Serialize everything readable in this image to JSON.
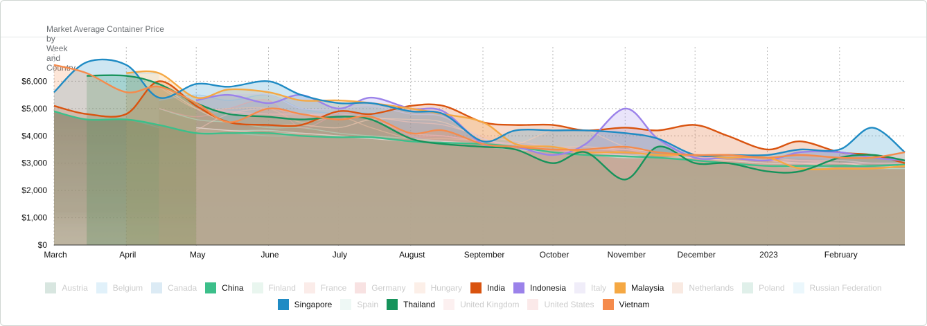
{
  "header": {
    "title_parts": [
      "Market Average Container Price",
      "by",
      "Week",
      "and",
      "Country"
    ]
  },
  "chart_data": {
    "type": "area",
    "title": "Market Average Container Price by Week and Country",
    "xlabel": "",
    "ylabel": "",
    "grid": true,
    "legend_position": "bottom",
    "ylim": [
      0,
      7000
    ],
    "y_ticks": [
      "$0",
      "$1,000",
      "$2,000",
      "$3,000",
      "$4,000",
      "$5,000",
      "$6,000"
    ],
    "x_ticks": [
      "March",
      "April",
      "May",
      "June",
      "July",
      "August",
      "September",
      "October",
      "November",
      "December",
      "2023",
      "February"
    ],
    "x": [
      "2022-03-01",
      "2022-03-15",
      "2022-04-01",
      "2022-04-15",
      "2022-05-01",
      "2022-05-15",
      "2022-06-01",
      "2022-06-15",
      "2022-07-01",
      "2022-07-15",
      "2022-08-01",
      "2022-08-15",
      "2022-09-01",
      "2022-09-15",
      "2022-10-01",
      "2022-10-15",
      "2022-11-01",
      "2022-11-15",
      "2022-12-01",
      "2022-12-15",
      "2023-01-01",
      "2023-01-15",
      "2023-02-01",
      "2023-02-15",
      "2023-03-01"
    ],
    "series": [
      {
        "name": "Austria",
        "color": "#7fb09a",
        "active": false,
        "values": [
          null,
          4600,
          4600,
          4300,
          null,
          null,
          null,
          null,
          null,
          null,
          null,
          null,
          null,
          null,
          null,
          null,
          null,
          null,
          null,
          null,
          null,
          null,
          null,
          null,
          null
        ]
      },
      {
        "name": "Belgium",
        "color": "#9fd3f0",
        "active": false,
        "values": [
          null,
          null,
          6300,
          6300,
          null,
          null,
          null,
          null,
          null,
          null,
          null,
          null,
          null,
          null,
          null,
          null,
          null,
          null,
          null,
          null,
          null,
          null,
          null,
          null,
          null
        ]
      },
      {
        "name": "Canada",
        "color": "#8fbfe0",
        "active": false,
        "values": [
          null,
          null,
          null,
          5300,
          5500,
          5300,
          5500,
          5000,
          4800,
          4800,
          4000,
          3800,
          3700,
          3700,
          3600,
          3500,
          3500,
          3400,
          3300,
          3200,
          3200,
          3200,
          3100,
          3000,
          3000
        ]
      },
      {
        "name": "China",
        "color": "#3cbf8a",
        "active": true,
        "values": [
          4900,
          4600,
          4600,
          4400,
          4100,
          4100,
          4100,
          4000,
          3950,
          3950,
          3800,
          3750,
          3700,
          3600,
          3400,
          3300,
          3250,
          3200,
          3100,
          3000,
          2900,
          2900,
          2900,
          2900,
          2950
        ]
      },
      {
        "name": "Finland",
        "color": "#b5e0c9",
        "active": false,
        "values": [
          null,
          null,
          null,
          5000,
          4600,
          4500,
          4300,
          4300,
          4100,
          4000,
          3900,
          3800,
          3700,
          3600,
          3500,
          3400,
          3300,
          3300,
          3200,
          3100,
          3000,
          3000,
          3000,
          2900,
          2900
        ]
      },
      {
        "name": "France",
        "color": "#f5c2b8",
        "active": false,
        "values": [
          null,
          null,
          null,
          null,
          4200,
          4800,
          5000,
          4800,
          4800,
          4700,
          4500,
          4400,
          4000,
          3800,
          3600,
          3600,
          3500,
          3400,
          3300,
          3300,
          3200,
          3100,
          3100,
          3000,
          3000
        ]
      },
      {
        "name": "Germany",
        "color": "#eaa3a3",
        "active": false,
        "values": [
          null,
          null,
          null,
          5000,
          4700,
          5000,
          5300,
          4300,
          4800,
          4700,
          4000,
          4000,
          3800,
          3700,
          3500,
          3400,
          3500,
          3300,
          3200,
          3200,
          3100,
          3000,
          3000,
          3000,
          3000
        ]
      },
      {
        "name": "Hungary",
        "color": "#f7cdb6",
        "active": false,
        "values": [
          null,
          null,
          null,
          5900,
          5000,
          4500,
          4400,
          4400,
          4300,
          4600,
          4600,
          4500,
          3900,
          3700,
          4200,
          4200,
          3600,
          3400,
          3300,
          3200,
          3100,
          3000,
          2900,
          2900,
          2900
        ]
      },
      {
        "name": "India",
        "color": "#d9530f",
        "active": true,
        "values": [
          5100,
          4800,
          4800,
          6000,
          5100,
          4500,
          4400,
          4400,
          4900,
          4800,
          5100,
          5100,
          4500,
          4400,
          4400,
          4200,
          4300,
          4200,
          4400,
          4000,
          3500,
          3800,
          3400,
          3300,
          3000
        ]
      },
      {
        "name": "Indonesia",
        "color": "#9b82ea",
        "active": true,
        "values": [
          null,
          null,
          null,
          null,
          5300,
          5500,
          5200,
          5500,
          5000,
          5400,
          5000,
          4900,
          3700,
          3600,
          3300,
          3700,
          5000,
          3900,
          3200,
          3200,
          3100,
          3400,
          3400,
          3200,
          3100
        ]
      },
      {
        "name": "Italy",
        "color": "#cfc6ee",
        "active": false,
        "values": [
          null,
          null,
          null,
          null,
          5400,
          5500,
          5500,
          5000,
          5000,
          5100,
          4800,
          4700,
          3900,
          3700,
          3500,
          3400,
          3300,
          3300,
          3200,
          3200,
          3100,
          3000,
          3000,
          3000,
          3000
        ]
      },
      {
        "name": "Malaysia",
        "color": "#f5a843",
        "active": true,
        "values": [
          null,
          null,
          6300,
          6300,
          5400,
          5700,
          5600,
          5300,
          5300,
          5200,
          5000,
          4800,
          4500,
          3700,
          3600,
          3400,
          3400,
          3300,
          3300,
          3200,
          3200,
          2800,
          2800,
          2800,
          2900
        ]
      },
      {
        "name": "Netherlands",
        "color": "#ecbda3",
        "active": false,
        "values": [
          null,
          null,
          null,
          5800,
          5000,
          5000,
          5000,
          4500,
          4700,
          4300,
          3900,
          3900,
          3800,
          3600,
          3500,
          3600,
          3400,
          3300,
          3200,
          3100,
          3100,
          3000,
          3000,
          2900,
          2900
        ]
      },
      {
        "name": "Poland",
        "color": "#9ccfbd",
        "active": false,
        "values": [
          null,
          null,
          null,
          null,
          4100,
          4100,
          4000,
          4000,
          3950,
          3900,
          3800,
          3700,
          3600,
          3500,
          3400,
          3300,
          3200,
          3200,
          3100,
          3000,
          2900,
          2800,
          2800,
          2800,
          2800
        ]
      },
      {
        "name": "Russian Federation",
        "color": "#bfe6f6",
        "active": false,
        "values": [
          null,
          null,
          null,
          null,
          null,
          null,
          null,
          null,
          null,
          null,
          null,
          null,
          null,
          null,
          null,
          null,
          null,
          null,
          null,
          null,
          null,
          null,
          null,
          null,
          null
        ]
      },
      {
        "name": "Singapore",
        "color": "#1f8bc4",
        "active": true,
        "values": [
          5600,
          6700,
          6600,
          5400,
          5900,
          5800,
          6000,
          5500,
          5200,
          5200,
          4900,
          4800,
          3800,
          4200,
          4200,
          4200,
          4100,
          3900,
          3300,
          3300,
          3300,
          3500,
          3500,
          4300,
          3400
        ]
      },
      {
        "name": "Spain",
        "color": "#c6e9dd",
        "active": false,
        "values": [
          null,
          null,
          null,
          null,
          4300,
          4200,
          4200,
          4100,
          4000,
          3900,
          3800,
          3700,
          3600,
          3500,
          3400,
          3300,
          3200,
          3200,
          3100,
          3000,
          2900,
          2900,
          2800,
          2800,
          2800
        ]
      },
      {
        "name": "Thailand",
        "color": "#16935b",
        "active": true,
        "values": [
          null,
          6200,
          6200,
          5900,
          5200,
          4800,
          4700,
          4600,
          4700,
          4600,
          3900,
          3700,
          3600,
          3500,
          3000,
          3400,
          2400,
          3600,
          3000,
          3000,
          2700,
          2700,
          3200,
          3300,
          3100
        ]
      },
      {
        "name": "United Kingdom",
        "color": "#f6cfcf",
        "active": false,
        "values": [
          null,
          null,
          null,
          null,
          4300,
          4200,
          4100,
          4100,
          4000,
          3900,
          3800,
          3800,
          3700,
          3600,
          3500,
          3400,
          3300,
          3200,
          3200,
          3100,
          3000,
          3000,
          3000,
          2900,
          2900
        ]
      },
      {
        "name": "United States",
        "color": "#f3b9b9",
        "active": false,
        "values": [
          null,
          null,
          null,
          null,
          5100,
          4900,
          4800,
          4800,
          4700,
          4600,
          4100,
          4000,
          3800,
          3700,
          3600,
          3500,
          3500,
          3300,
          3300,
          3200,
          3100,
          3100,
          3000,
          3000,
          3000
        ]
      },
      {
        "name": "Vietnam",
        "color": "#f58b4c",
        "active": true,
        "values": [
          6600,
          6300,
          5600,
          5800,
          5200,
          4500,
          5000,
          4800,
          4600,
          4700,
          4100,
          4200,
          3700,
          3600,
          3500,
          3500,
          3600,
          3400,
          3300,
          3300,
          3200,
          3300,
          3200,
          3200,
          3400
        ]
      }
    ]
  },
  "legend": {
    "rows": [
      [
        "Austria",
        "Belgium",
        "Canada",
        "China",
        "Finland",
        "France",
        "Germany",
        "Hungary",
        "India",
        "Indonesia",
        "Italy",
        "Malaysia",
        "Netherlands",
        "Poland",
        "Russian Federation"
      ],
      [
        "Singapore",
        "Spain",
        "Thailand",
        "United Kingdom",
        "United States",
        "Vietnam"
      ]
    ]
  }
}
